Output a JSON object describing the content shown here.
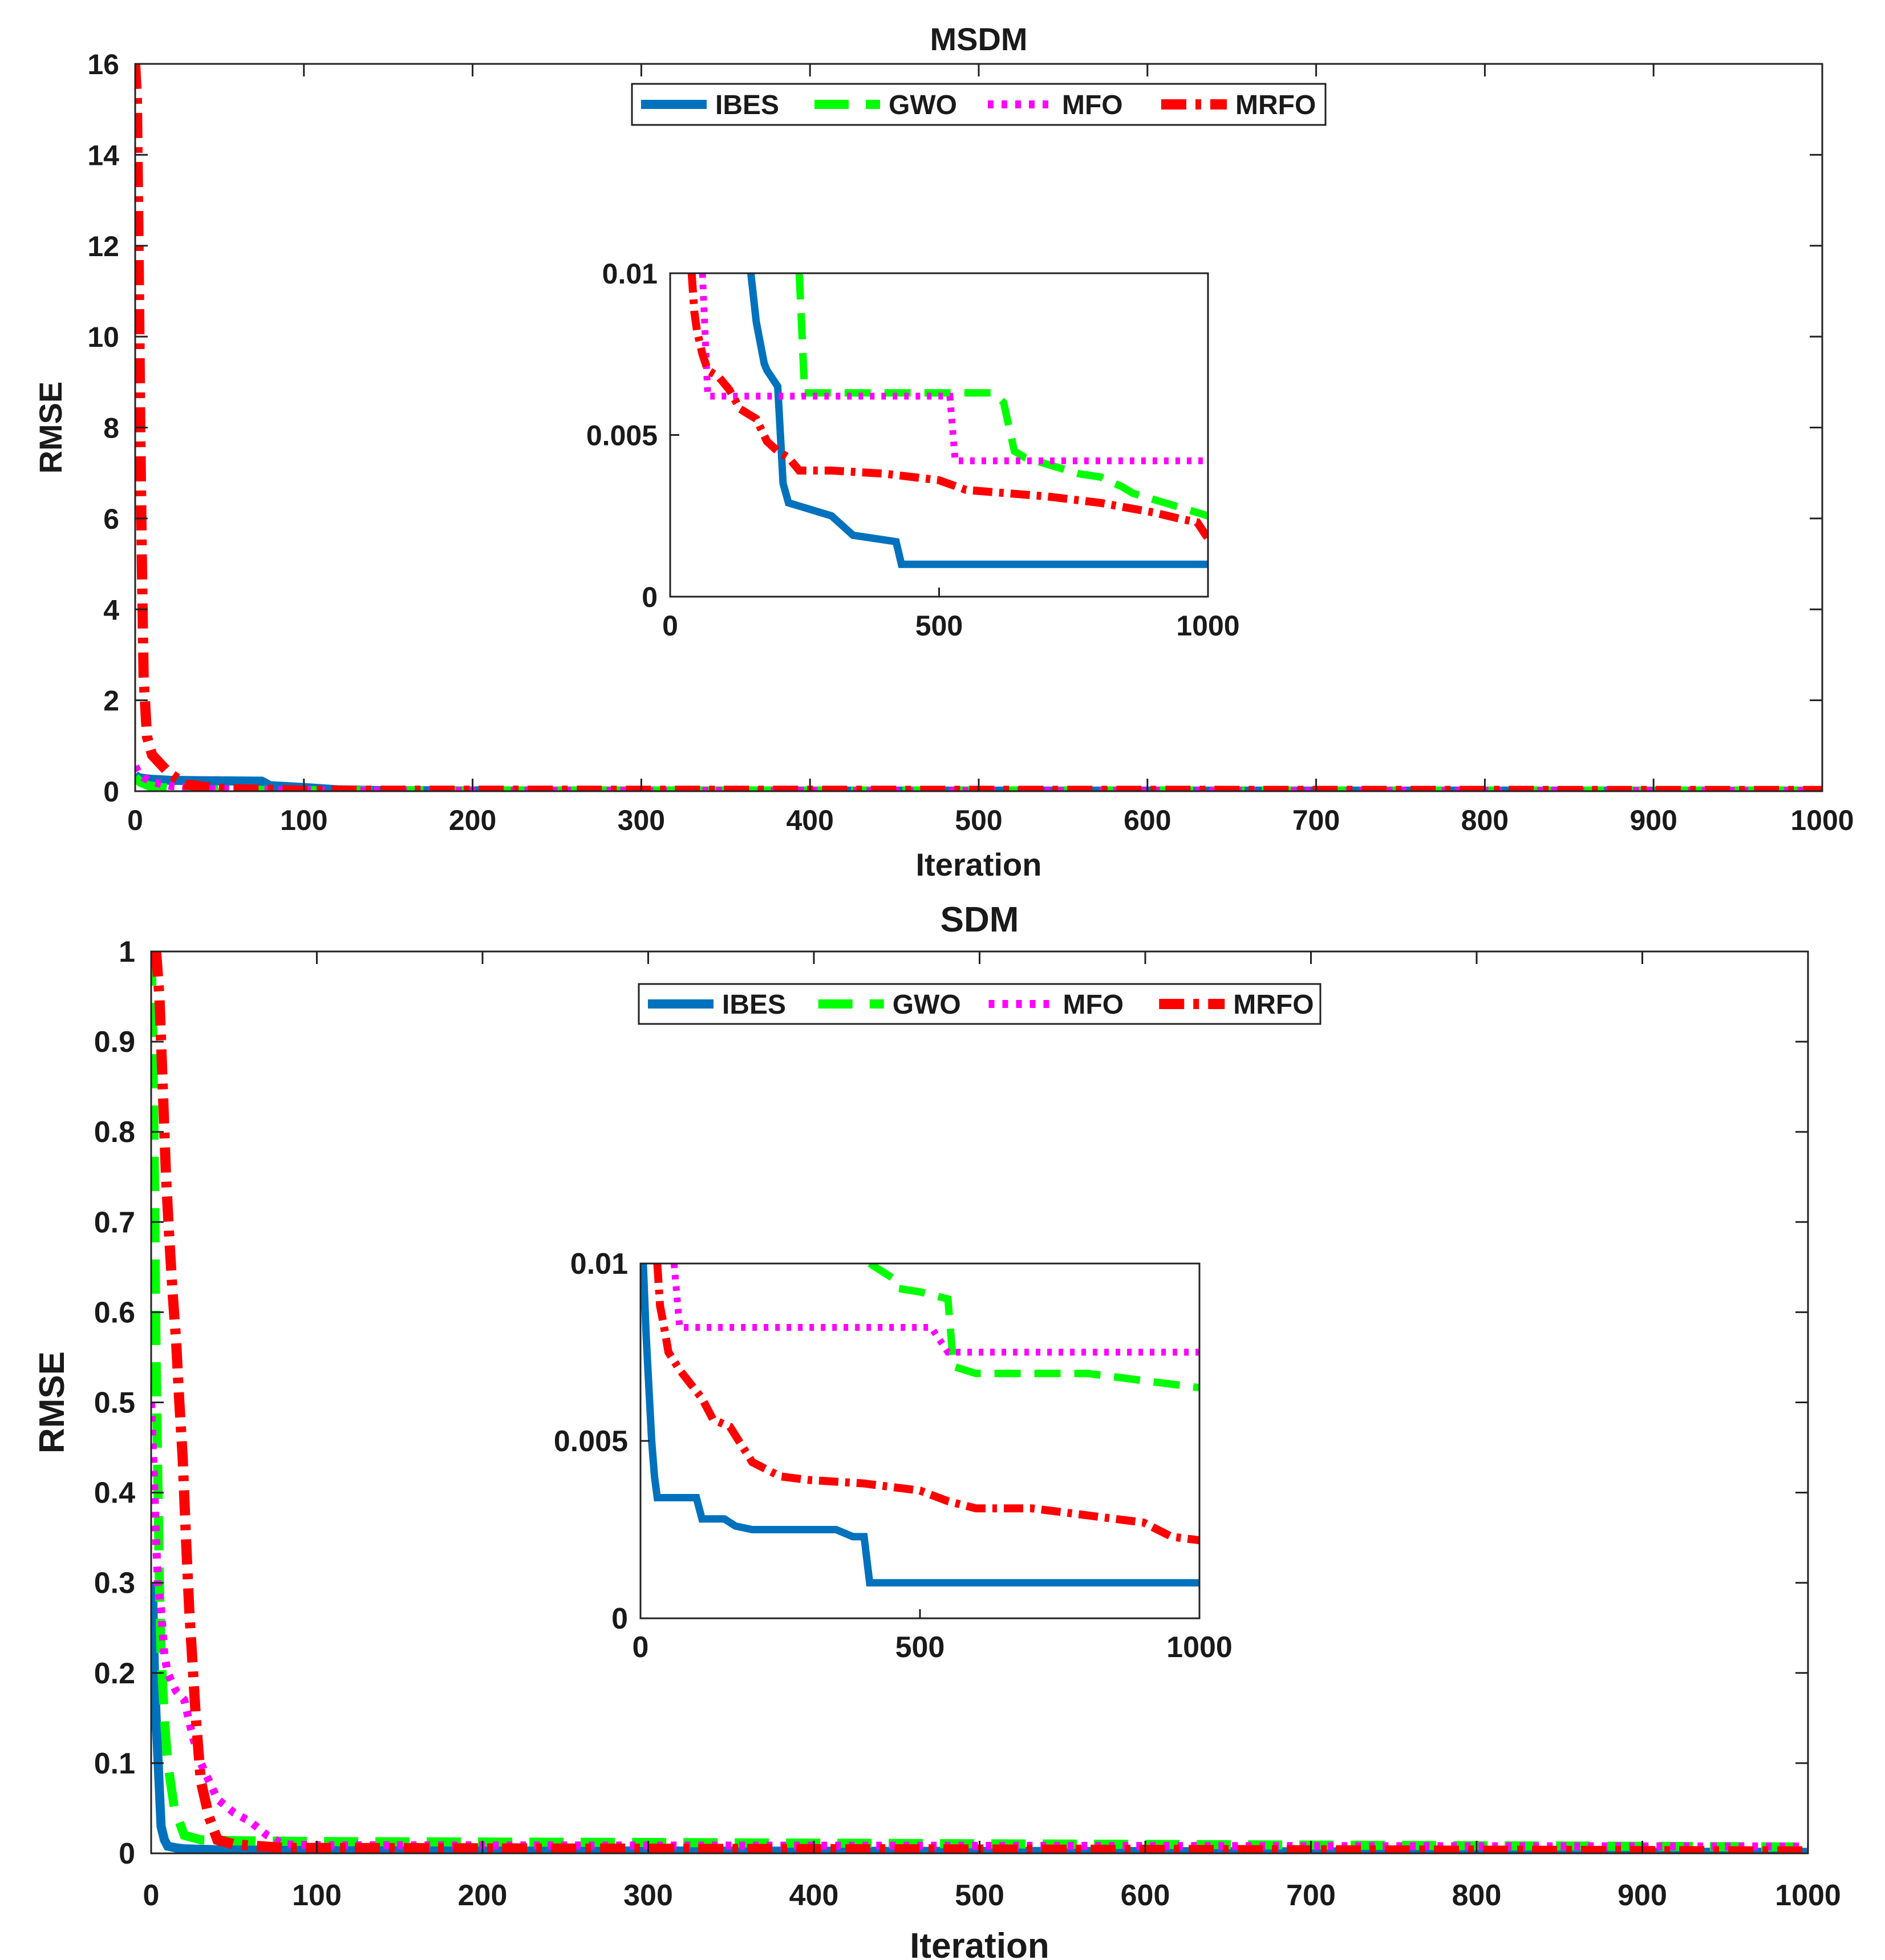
{
  "chart_data": [
    {
      "type": "line",
      "title": "MSDM",
      "xlabel": "Iteration",
      "ylabel": "RMSE",
      "xlim": [
        0,
        1000
      ],
      "ylim": [
        0,
        16
      ],
      "xticks": [
        "0",
        "100",
        "200",
        "300",
        "400",
        "500",
        "600",
        "700",
        "800",
        "900",
        "1000"
      ],
      "yticks": [
        "0",
        "2",
        "4",
        "6",
        "8",
        "10",
        "12",
        "14",
        "16"
      ],
      "legend_position": "top-center",
      "series": [
        {
          "name": "IBES",
          "color": "#0072bd",
          "style": "solid",
          "x": [
            0,
            2,
            5,
            10,
            20,
            40,
            75,
            80,
            100,
            120,
            150,
            300,
            1000
          ],
          "y": [
            0.35,
            0.3,
            0.28,
            0.26,
            0.24,
            0.23,
            0.22,
            0.12,
            0.08,
            0.03,
            0.01,
            0.002,
            0.001
          ]
        },
        {
          "name": "GWO",
          "color": "#00ff00",
          "style": "dashed",
          "x": [
            0,
            3,
            8,
            15,
            30,
            60,
            100,
            200,
            1000
          ],
          "y": [
            0.3,
            0.2,
            0.12,
            0.08,
            0.04,
            0.02,
            0.01,
            0.006,
            0.002
          ]
        },
        {
          "name": "MFO",
          "color": "#ff00ff",
          "style": "dotted",
          "x": [
            0,
            2,
            5,
            10,
            20,
            40,
            80,
            150,
            1000
          ],
          "y": [
            0.55,
            0.4,
            0.3,
            0.2,
            0.12,
            0.05,
            0.02,
            0.006,
            0.004
          ]
        },
        {
          "name": "MRFO",
          "color": "#ff0000",
          "style": "dashdot",
          "x": [
            0,
            1,
            2,
            3,
            4,
            5,
            7,
            10,
            15,
            20,
            30,
            50,
            100,
            1000
          ],
          "y": [
            16,
            15.2,
            12,
            8,
            5,
            2.5,
            1.2,
            0.8,
            0.6,
            0.4,
            0.15,
            0.05,
            0.01,
            0.002
          ]
        }
      ],
      "inset": {
        "xlim": [
          0,
          1000
        ],
        "ylim": [
          0,
          0.01
        ],
        "xticks": [
          "0",
          "500",
          "1000"
        ],
        "yticks": [
          "0",
          "0.005",
          "0.01"
        ],
        "series": [
          {
            "name": "IBES",
            "x": [
              150,
              160,
              175,
              180,
              200,
              210,
              220,
              240,
              260,
              280,
              300,
              320,
              340,
              380,
              420,
              430,
              1000
            ],
            "y": [
              0.01,
              0.0085,
              0.0072,
              0.007,
              0.0065,
              0.0035,
              0.0029,
              0.0028,
              0.0027,
              0.0026,
              0.0025,
              0.0022,
              0.0019,
              0.0018,
              0.0017,
              0.001,
              0.001
            ]
          },
          {
            "name": "GWO",
            "x": [
              240,
              250,
              600,
              620,
              640,
              660,
              760,
              800,
              840,
              860,
              900,
              940,
              980,
              1000
            ],
            "y": [
              0.01,
              0.0063,
              0.0063,
              0.006,
              0.0045,
              0.0043,
              0.0038,
              0.0037,
              0.0034,
              0.0032,
              0.003,
              0.0028,
              0.0026,
              0.0025
            ]
          },
          {
            "name": "MFO",
            "x": [
              60,
              70,
              520,
              530,
              1000
            ],
            "y": [
              0.01,
              0.0062,
              0.0062,
              0.0042,
              0.0042
            ]
          },
          {
            "name": "MRFO",
            "x": [
              40,
              45,
              50,
              60,
              70,
              90,
              110,
              130,
              160,
              180,
              200,
              220,
              240,
              300,
              400,
              500,
              550,
              700,
              800,
              900,
              950,
              980,
              1000
            ],
            "y": [
              0.01,
              0.0088,
              0.0082,
              0.0075,
              0.007,
              0.0068,
              0.0064,
              0.0058,
              0.0055,
              0.0048,
              0.0045,
              0.0043,
              0.0039,
              0.0039,
              0.0038,
              0.0036,
              0.0033,
              0.0031,
              0.0029,
              0.0026,
              0.0024,
              0.0023,
              0.0018
            ]
          }
        ]
      }
    },
    {
      "type": "line",
      "title": "SDM",
      "xlabel": "Iteration",
      "ylabel": "RMSE",
      "xlim": [
        0,
        1000
      ],
      "ylim": [
        0,
        1
      ],
      "xticks": [
        "0",
        "100",
        "200",
        "300",
        "400",
        "500",
        "600",
        "700",
        "800",
        "900",
        "1000"
      ],
      "yticks": [
        "0",
        "0.1",
        "0.2",
        "0.3",
        "0.4",
        "0.5",
        "0.6",
        "0.7",
        "0.8",
        "0.9",
        "1"
      ],
      "legend_position": "top-center",
      "series": [
        {
          "name": "IBES",
          "color": "#0072bd",
          "style": "solid",
          "x": [
            0,
            1,
            2,
            3,
            4,
            5,
            6,
            8,
            10,
            15,
            20,
            40,
            100,
            1000
          ],
          "y": [
            0.3,
            0.28,
            0.2,
            0.15,
            0.11,
            0.07,
            0.03,
            0.015,
            0.008,
            0.006,
            0.005,
            0.004,
            0.003,
            0.001
          ]
        },
        {
          "name": "GWO",
          "color": "#00ff00",
          "style": "dashed",
          "x": [
            0,
            1,
            2,
            3,
            4,
            5,
            6,
            8,
            10,
            14,
            20,
            30,
            50,
            100,
            300,
            1000
          ],
          "y": [
            1,
            0.9,
            0.75,
            0.55,
            0.42,
            0.3,
            0.22,
            0.15,
            0.1,
            0.05,
            0.02,
            0.015,
            0.014,
            0.013,
            0.012,
            0.007
          ]
        },
        {
          "name": "MFO",
          "color": "#ff00ff",
          "style": "dotted",
          "x": [
            0,
            2,
            4,
            6,
            8,
            10,
            15,
            20,
            25,
            30,
            40,
            50,
            60,
            70,
            80,
            100,
            1000
          ],
          "y": [
            0.5,
            0.4,
            0.3,
            0.27,
            0.22,
            0.2,
            0.18,
            0.17,
            0.13,
            0.1,
            0.06,
            0.045,
            0.035,
            0.02,
            0.01,
            0.009,
            0.0075
          ]
        },
        {
          "name": "MRFO",
          "color": "#ff0000",
          "style": "dashdot",
          "x": [
            3,
            5,
            7,
            9,
            11,
            13,
            15,
            17,
            19,
            21,
            23,
            25,
            27,
            30,
            35,
            40,
            50,
            80,
            1000
          ],
          "y": [
            1,
            0.95,
            0.85,
            0.75,
            0.68,
            0.62,
            0.57,
            0.5,
            0.44,
            0.35,
            0.27,
            0.21,
            0.15,
            0.08,
            0.04,
            0.015,
            0.01,
            0.006,
            0.002
          ]
        }
      ],
      "inset": {
        "xlim": [
          0,
          1000
        ],
        "ylim": [
          0,
          0.01
        ],
        "xticks": [
          "0",
          "500",
          "1000"
        ],
        "yticks": [
          "0",
          "0.005",
          "0.01"
        ],
        "series": [
          {
            "name": "IBES",
            "x": [
              5,
              10,
              15,
              20,
              25,
              30,
              100,
              110,
              150,
              170,
              200,
              350,
              380,
              400,
              410,
              1000
            ],
            "y": [
              0.01,
              0.008,
              0.0065,
              0.005,
              0.004,
              0.0034,
              0.0034,
              0.0028,
              0.0028,
              0.0026,
              0.0025,
              0.0025,
              0.0023,
              0.0023,
              0.001,
              0.001
            ]
          },
          {
            "name": "GWO",
            "x": [
              410,
              420,
              450,
              460,
              500,
              550,
              560,
              600,
              650,
              800,
              850,
              900,
              950,
              1000
            ],
            "y": [
              0.01,
              0.0099,
              0.0096,
              0.0093,
              0.0092,
              0.009,
              0.0071,
              0.0069,
              0.0069,
              0.0069,
              0.0068,
              0.0067,
              0.0066,
              0.0065
            ]
          },
          {
            "name": "MFO",
            "x": [
              60,
              70,
              520,
              550,
              1000
            ],
            "y": [
              0.01,
              0.0082,
              0.0082,
              0.0075,
              0.0075
            ]
          },
          {
            "name": "MRFO",
            "x": [
              30,
              35,
              40,
              50,
              70,
              90,
              110,
              130,
              160,
              180,
              200,
              250,
              300,
              400,
              450,
              500,
              550,
              600,
              700,
              800,
              900,
              950,
              1000
            ],
            "y": [
              0.01,
              0.0088,
              0.0084,
              0.0075,
              0.007,
              0.0066,
              0.0062,
              0.0056,
              0.0054,
              0.0049,
              0.0044,
              0.004,
              0.0039,
              0.0038,
              0.0037,
              0.0036,
              0.0033,
              0.0031,
              0.0031,
              0.0029,
              0.0027,
              0.0023,
              0.0022
            ]
          }
        ]
      }
    }
  ]
}
